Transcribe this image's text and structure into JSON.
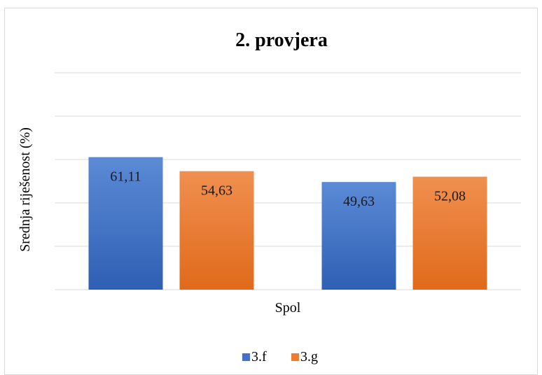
{
  "chart_data": {
    "type": "bar",
    "title": "2. provjera",
    "xlabel": "Spol",
    "ylabel": "Srednja riješenost (%)",
    "ylim": [
      0,
      100
    ],
    "grid": true,
    "legend_position": "bottom",
    "groups": [
      "",
      ""
    ],
    "series": [
      {
        "name": "3.f",
        "color": "#4472c4",
        "values": [
          61.11,
          49.63
        ],
        "labels": [
          "61,11",
          "49,63"
        ]
      },
      {
        "name": "3.g",
        "color": "#ed7d31",
        "values": [
          54.63,
          52.08
        ],
        "labels": [
          "54,63",
          "52,08"
        ]
      }
    ]
  }
}
